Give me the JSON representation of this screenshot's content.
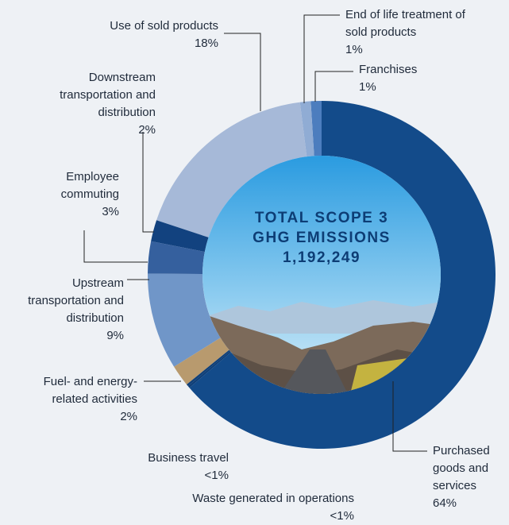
{
  "chart_data": {
    "type": "donut",
    "center_text": [
      "TOTAL SCOPE 3",
      "GHG EMISSIONS",
      "1,192,249"
    ],
    "categories": [
      "Purchased goods and services",
      "Waste generated in operations",
      "Business travel",
      "Fuel- and energy-related activities",
      "Upstream transportation and distribution",
      "Employee commuting",
      "Downstream transportation and distribution",
      "Use of sold products",
      "End of life treatment of sold products",
      "Franchises"
    ],
    "values": [
      64,
      0.2,
      0.2,
      2,
      9,
      3,
      2,
      18,
      1,
      1
    ],
    "value_labels": [
      "64%",
      "<1%",
      "<1%",
      "2%",
      "9%",
      "3%",
      "2%",
      "18%",
      "1%",
      "1%"
    ],
    "colors": [
      "#134b8a",
      "#0f3f78",
      "#0f3f78",
      "#b89a6e",
      "#7096c8",
      "#35609e",
      "#12427f",
      "#a6b9d8",
      "#90acd4",
      "#4c7dbe"
    ]
  }
}
